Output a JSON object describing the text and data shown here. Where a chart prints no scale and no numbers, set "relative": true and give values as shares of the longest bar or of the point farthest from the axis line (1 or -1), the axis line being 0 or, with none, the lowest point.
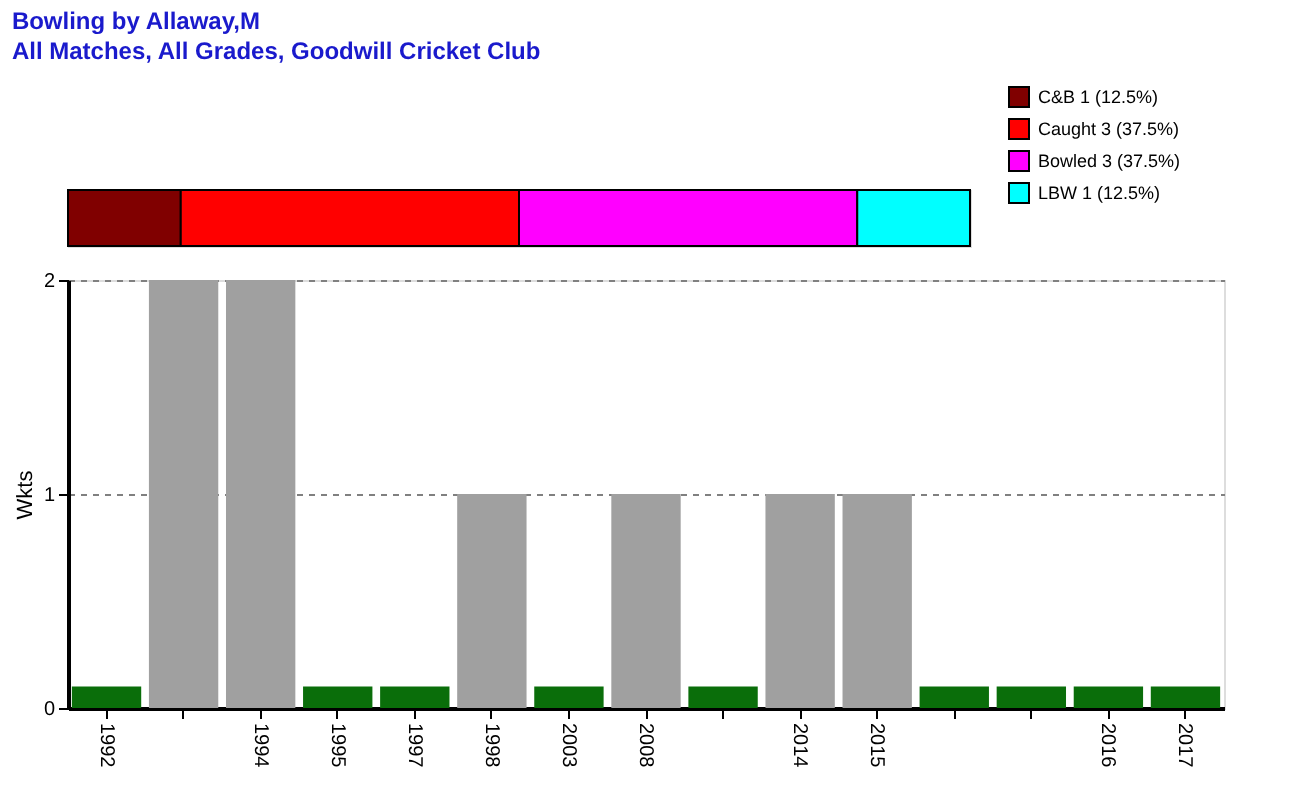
{
  "chart_data": [
    {
      "type": "bar",
      "title": "Bowling by Allaway,M",
      "subtitle": "All Matches, All Grades, Goodwill Cricket Club",
      "orientation": "horizontal",
      "stacked": true,
      "relative": true,
      "categories": [
        null
      ],
      "legend": "top right",
      "series": [
        {
          "name": "C&B 1 (12.5%)",
          "color": "#800000",
          "values": [
            0.125
          ]
        },
        {
          "name": "Caught 3 (37.5%)",
          "color": "#ff0000",
          "values": [
            0.375
          ]
        },
        {
          "name": "Bowled 3 (37.5%)",
          "color": "#ff00ff",
          "values": [
            0.375
          ]
        },
        {
          "name": "LBW 1 (12.5%)",
          "color": "#00ffff",
          "values": [
            0.125
          ]
        }
      ]
    },
    {
      "type": "bar",
      "ylabel": "Wkts",
      "categories": [
        "1992",
        null,
        "1994",
        "1995",
        "1997",
        "1998",
        "2003",
        "2008",
        null,
        "2014",
        "2015",
        null,
        null,
        "2016",
        "2017"
      ],
      "ylim": [
        0,
        2
      ],
      "yticks": [
        0,
        1,
        2
      ],
      "grid": "y",
      "series": [
        {
          "color": "#a0a0a0",
          "values": [
            null,
            2,
            2,
            null,
            null,
            1,
            null,
            1,
            null,
            1,
            1,
            null,
            null,
            null,
            null
          ]
        },
        {
          "color": "#0a6e0a",
          "values": [
            0.1,
            null,
            null,
            0.1,
            0.1,
            null,
            0.1,
            null,
            0.1,
            null,
            null,
            0.1,
            0.1,
            0.1,
            0.1
          ]
        }
      ]
    }
  ]
}
